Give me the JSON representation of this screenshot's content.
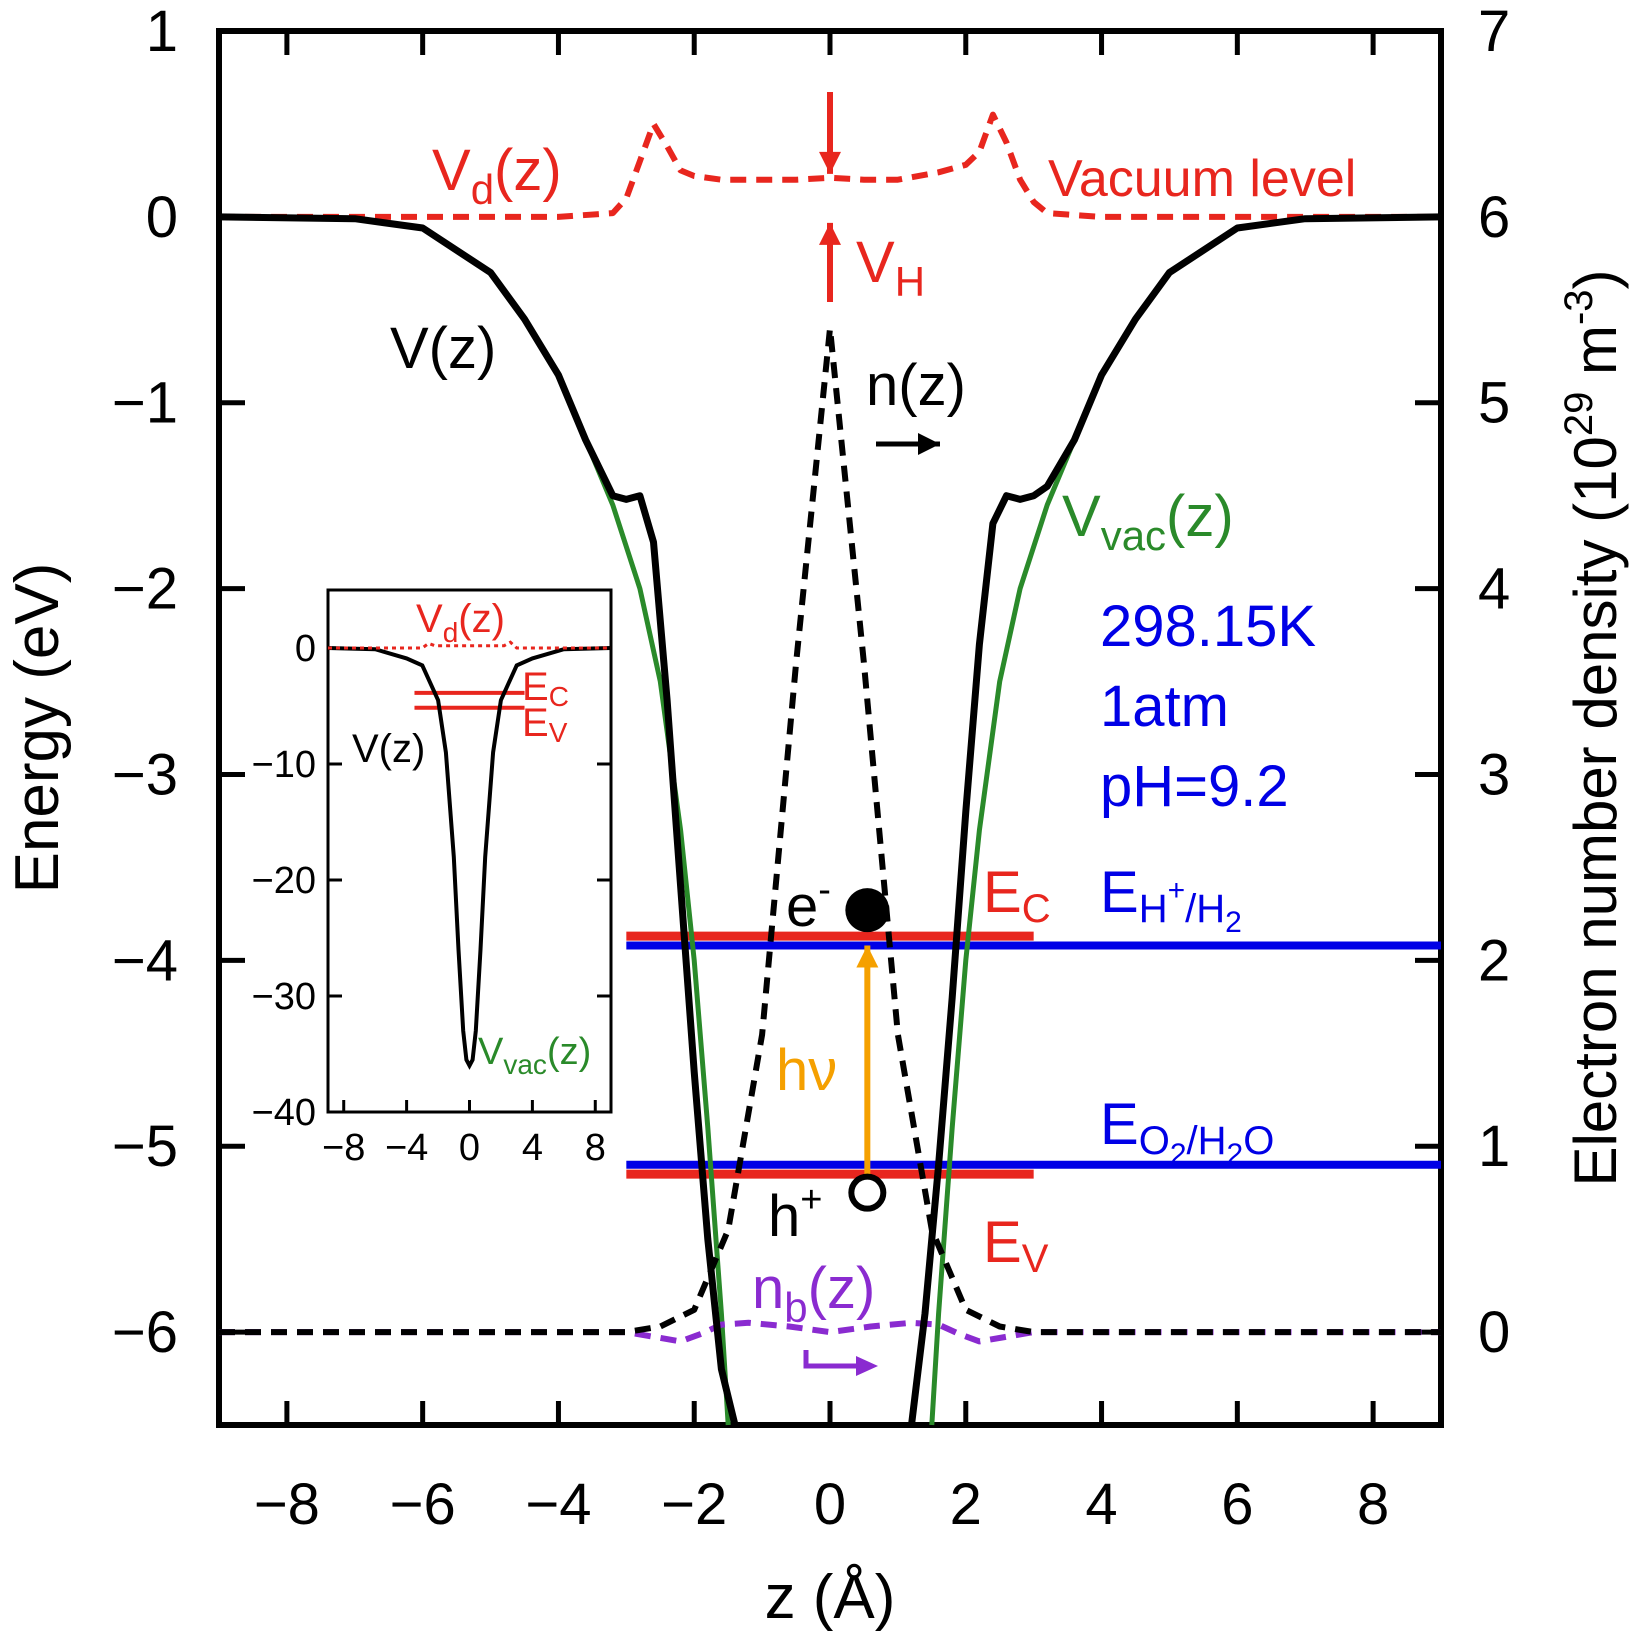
{
  "chart_data": [
    {
      "type": "line",
      "xlabel": "z (Å)",
      "ylabel": "Energy (eV)",
      "y2label_main": "Electron number density (10",
      "y2label_exp1": "29",
      "y2label_mid": " m",
      "y2label_exp2": "-3",
      "y2label_end": ")",
      "xlim": [
        -9,
        9
      ],
      "ylim": [
        -6.5,
        1
      ],
      "y2lim": [
        -0.5,
        7
      ],
      "xticks": [
        -8,
        -6,
        -4,
        -2,
        0,
        2,
        4,
        6,
        8
      ],
      "yticks": [
        1,
        0,
        -1,
        -2,
        -3,
        -4,
        -5,
        -6
      ],
      "y2ticks": [
        7,
        6,
        5,
        4,
        3,
        2,
        1,
        0
      ],
      "conditions": [
        "298.15K",
        "1atm",
        "pH=9.2"
      ],
      "labels": {
        "Vd_base": "V",
        "Vd_sub": "d",
        "Vd_tail": "(z)",
        "vacuum": "Vacuum level",
        "VH_base": "V",
        "VH_sub": "H",
        "V": "V(z)",
        "n": "n(z)",
        "Vvac_base": "V",
        "Vvac_sub": "vac",
        "Vvac_tail": "(z)",
        "EC_base": "E",
        "EC_sub": "C",
        "EV_base": "E",
        "EV_sub": "V",
        "EH_base": "E",
        "EH_sub_a": "H",
        "EH_sup": "+",
        "EH_sub_b": "/H",
        "EH_sub2": "2",
        "EO_base": "E",
        "EO_sub_a": "O",
        "EO_sub2a": "2",
        "EO_sub_b": "/H",
        "EO_sub2b": "2",
        "EO_sub_c": "O",
        "electron_base": "e",
        "electron_sup": "-",
        "hole_base": "h",
        "hole_sup": "+",
        "photon": "hν",
        "nb_base": "n",
        "nb_sub": "b",
        "nb_tail": "(z)"
      },
      "levels": {
        "E_C": -3.87,
        "E_V": -5.15,
        "E_H+/H2": -3.92,
        "E_O2/H2O": -5.1
      },
      "series": [
        {
          "name": "V(z)",
          "axis": "left",
          "color": "#000000",
          "style": "solid",
          "x": [
            -9,
            -7,
            -6,
            -5,
            -4.5,
            -4,
            -3.6,
            -3.2,
            -3.0,
            -2.8,
            -2.6,
            -2.4,
            -2.2,
            -2.0,
            -1.8,
            -1.6,
            -1.4
          ],
          "y": [
            0,
            -0.01,
            -0.06,
            -0.3,
            -0.55,
            -0.85,
            -1.2,
            -1.5,
            -1.52,
            -1.5,
            -1.75,
            -2.6,
            -3.6,
            -4.6,
            -5.5,
            -6.2,
            -6.5
          ]
        },
        {
          "name": "V(z)",
          "axis": "left",
          "color": "#000000",
          "style": "solid",
          "x": [
            1.2,
            1.4,
            1.6,
            1.8,
            2.0,
            2.2,
            2.4,
            2.6,
            2.8,
            3.0,
            3.2,
            3.6,
            4.0,
            4.5,
            5.0,
            6.0,
            7.0,
            9.0
          ],
          "y": [
            -6.5,
            -5.9,
            -5.1,
            -4.2,
            -3.2,
            -2.3,
            -1.65,
            -1.5,
            -1.52,
            -1.5,
            -1.45,
            -1.2,
            -0.85,
            -0.55,
            -0.3,
            -0.06,
            -0.01,
            0
          ]
        },
        {
          "name": "V_vac(z)",
          "axis": "left",
          "color": "#2a8a2a",
          "style": "solid",
          "x": [
            -9,
            -7,
            -6,
            -5,
            -4.5,
            -4,
            -3.6,
            -3.2,
            -2.8,
            -2.5,
            -2.2,
            -2.0,
            -1.8,
            -1.6,
            -1.5
          ],
          "y": [
            0,
            -0.01,
            -0.06,
            -0.3,
            -0.55,
            -0.85,
            -1.2,
            -1.55,
            -2.0,
            -2.5,
            -3.3,
            -4.0,
            -4.9,
            -5.9,
            -6.5
          ]
        },
        {
          "name": "V_vac(z)",
          "axis": "left",
          "color": "#2a8a2a",
          "style": "solid",
          "x": [
            1.5,
            1.6,
            1.8,
            2.0,
            2.2,
            2.5,
            2.8,
            3.2,
            3.6,
            4.0,
            4.5,
            5.0,
            6.0,
            7.0,
            9.0
          ],
          "y": [
            -6.5,
            -5.9,
            -4.9,
            -4.0,
            -3.3,
            -2.5,
            -2.0,
            -1.55,
            -1.2,
            -0.85,
            -0.55,
            -0.3,
            -0.06,
            -0.01,
            0
          ]
        },
        {
          "name": "V_d(z)",
          "axis": "left",
          "color": "#e8261e",
          "style": "dashed",
          "x": [
            -9,
            -4,
            -3.2,
            -3.0,
            -2.8,
            -2.6,
            -2.4,
            -2.2,
            -2.0,
            -1.6,
            -1.0,
            -0.5,
            0,
            0.5,
            1.0,
            1.6,
            2.0,
            2.2,
            2.4,
            2.6,
            2.8,
            3.0,
            3.2,
            4.0,
            9.0
          ],
          "y": [
            0,
            0,
            0.02,
            0.1,
            0.3,
            0.5,
            0.38,
            0.25,
            0.22,
            0.2,
            0.2,
            0.2,
            0.21,
            0.2,
            0.2,
            0.24,
            0.28,
            0.35,
            0.55,
            0.4,
            0.2,
            0.08,
            0.02,
            0,
            0
          ]
        },
        {
          "name": "n(z)",
          "axis": "right",
          "color": "#000000",
          "style": "dashed",
          "x": [
            -9,
            -3,
            -2.5,
            -2.0,
            -1.5,
            -1.0,
            -0.5,
            0,
            0.5,
            1.0,
            1.5,
            2.0,
            2.5,
            3,
            9
          ],
          "y": [
            0,
            0,
            0.03,
            0.12,
            0.55,
            1.6,
            3.6,
            5.4,
            3.6,
            1.6,
            0.55,
            0.12,
            0.03,
            0,
            0
          ]
        },
        {
          "name": "n_b(z)",
          "axis": "right",
          "color": "#8a2bd0",
          "style": "dashed",
          "x": [
            -9,
            -3,
            -2.2,
            -1.9,
            -1.6,
            -1.2,
            -0.6,
            0,
            0.6,
            1.2,
            1.6,
            1.9,
            2.2,
            3,
            9
          ],
          "y": [
            0,
            0,
            -0.05,
            -0.01,
            0.04,
            0.05,
            0.03,
            0.0,
            0.03,
            0.05,
            0.04,
            -0.01,
            -0.05,
            0,
            0
          ]
        }
      ]
    },
    {
      "type": "line",
      "inset": true,
      "xlim": [
        -9,
        9
      ],
      "ylim": [
        -40,
        5
      ],
      "xticks": [
        -8,
        -4,
        0,
        4,
        8
      ],
      "yticks": [
        0,
        -10,
        -20,
        -30,
        -40
      ],
      "labels": {
        "Vd_base": "V",
        "Vd_sub": "d",
        "Vd_tail": "(z)",
        "V": "V(z)",
        "EC_base": "E",
        "EC_sub": "C",
        "EV_base": "E",
        "EV_sub": "V",
        "Vvac_base": "V",
        "Vvac_sub": "vac",
        "Vvac_tail": "(z)"
      },
      "levels": {
        "E_C": -3.87,
        "E_V": -5.15
      },
      "series": [
        {
          "name": "V(z)",
          "color": "#000000",
          "style": "solid",
          "x": [
            -9,
            -6,
            -4,
            -3,
            -2,
            -1.5,
            -1.0,
            -0.7,
            -0.4,
            -0.2,
            0,
            0.2,
            0.4,
            0.7,
            1.0,
            1.5,
            2,
            3,
            4,
            6,
            9
          ],
          "y": [
            0,
            -0.1,
            -0.9,
            -1.5,
            -4.5,
            -9,
            -18,
            -26,
            -33,
            -35.5,
            -36,
            -35.5,
            -33,
            -26,
            -18,
            -9,
            -4.5,
            -1.5,
            -0.9,
            -0.1,
            0
          ]
        },
        {
          "name": "V_d(z)",
          "color": "#e8261e",
          "style": "dotted",
          "x": [
            -9,
            -3,
            -2.6,
            -2.2,
            -1.5,
            0,
            1.5,
            2.2,
            2.6,
            3,
            9
          ],
          "y": [
            0,
            0,
            0.4,
            0.2,
            0.2,
            0.2,
            0.2,
            0.2,
            0.5,
            0,
            0
          ]
        }
      ]
    }
  ]
}
